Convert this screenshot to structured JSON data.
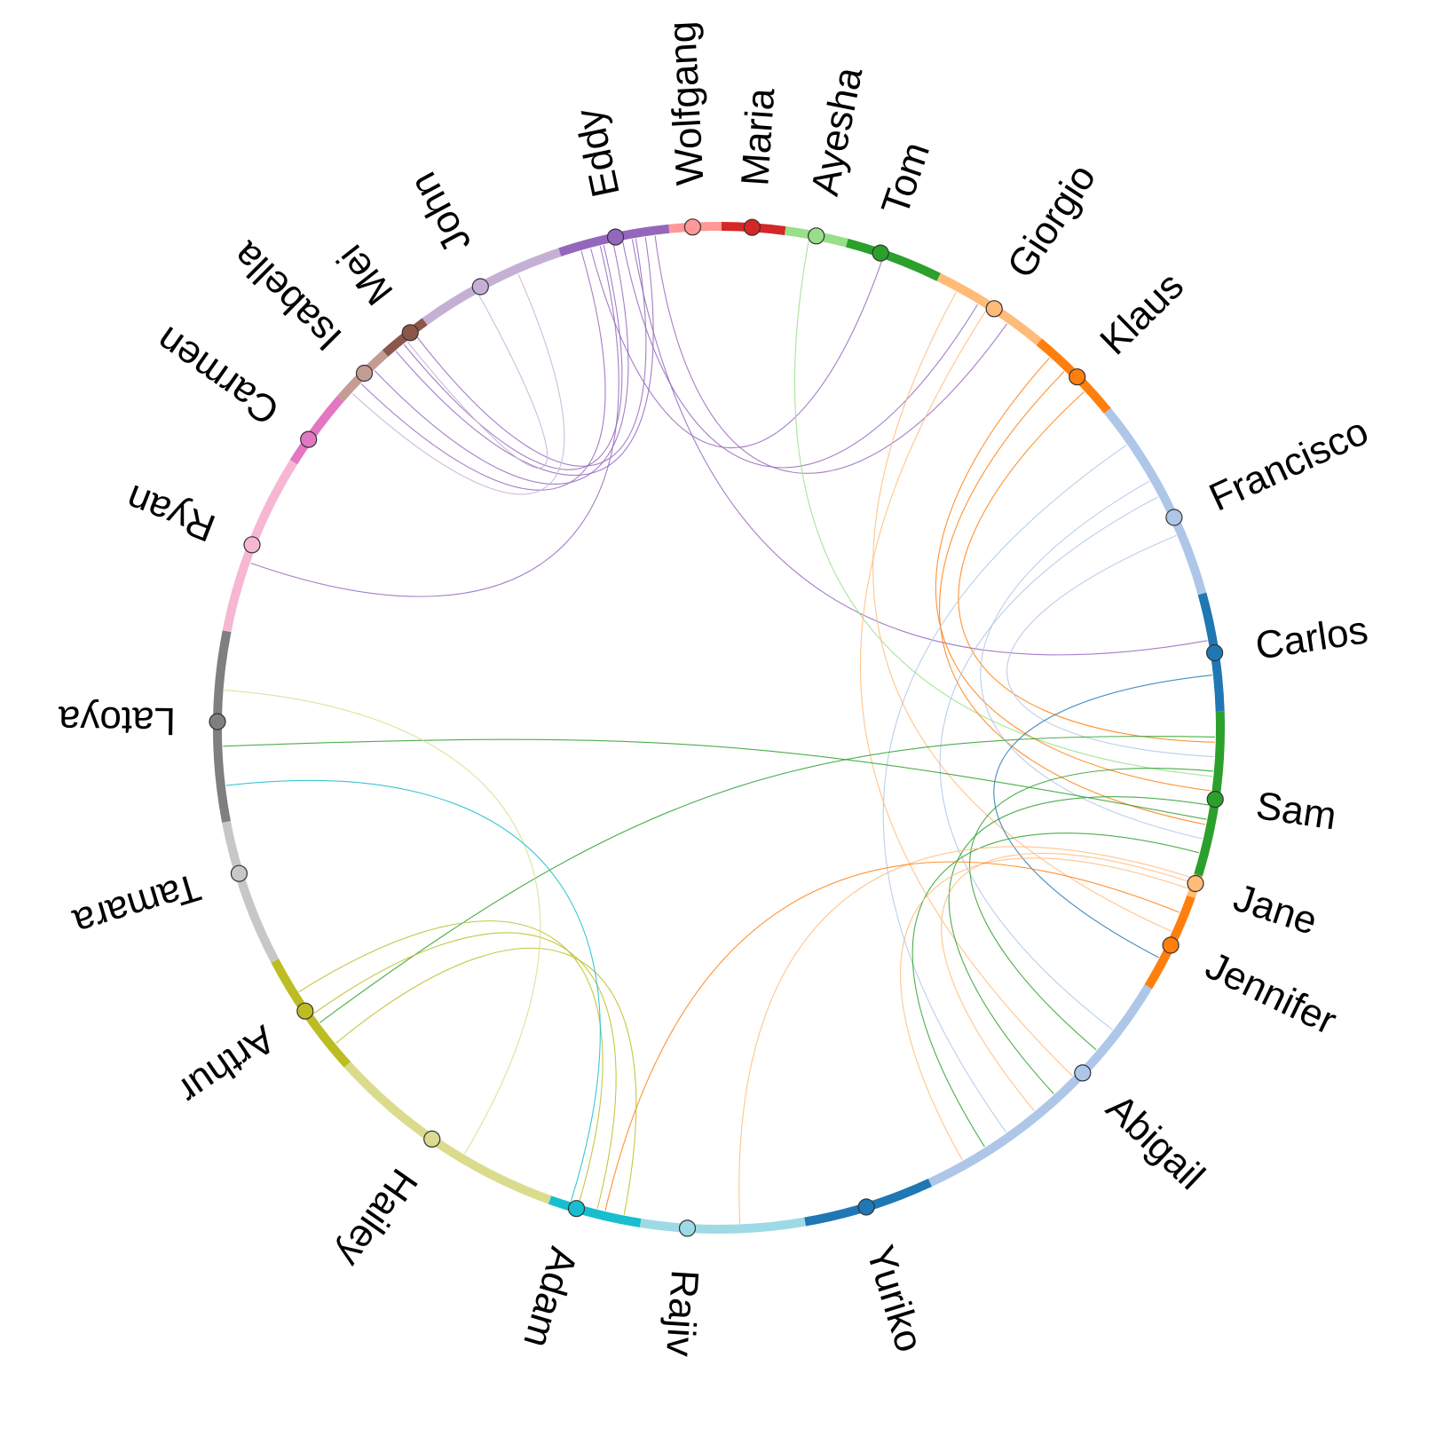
{
  "nodes": [
    {
      "id": "Eddy",
      "label": "Eddy",
      "color": "#9467bd"
    },
    {
      "id": "Wolfgang",
      "label": "Wolfgang",
      "color": "#ff9896"
    },
    {
      "id": "Maria",
      "label": "Maria",
      "color": "#d62728"
    },
    {
      "id": "Ayesha",
      "label": "Ayesha",
      "color": "#98df8a"
    },
    {
      "id": "Tom",
      "label": "Tom",
      "color": "#2ca02c"
    },
    {
      "id": "Giorgio",
      "label": "Giorgio",
      "color": "#ffbb78"
    },
    {
      "id": "Klaus",
      "label": "Klaus",
      "color": "#ff7f0e"
    },
    {
      "id": "Francisco",
      "label": "Francisco",
      "color": "#aec7e8"
    },
    {
      "id": "Carlos",
      "label": "Carlos",
      "color": "#1f77b4"
    },
    {
      "id": "Sam",
      "label": "Sam",
      "color": "#2ca02c"
    },
    {
      "id": "Jane",
      "label": "Jane",
      "color": "#ffbb78"
    },
    {
      "id": "Jennifer",
      "label": "Jennifer",
      "color": "#ff7f0e"
    },
    {
      "id": "Abigail",
      "label": "Abigail",
      "color": "#aec7e8"
    },
    {
      "id": "Yuriko",
      "label": "Yuriko",
      "color": "#1f77b4"
    },
    {
      "id": "Rajiv",
      "label": "Rajiv",
      "color": "#9edae5"
    },
    {
      "id": "Adam",
      "label": "Adam",
      "color": "#17becf"
    },
    {
      "id": "Hailey",
      "label": "Hailey",
      "color": "#dbdb8d"
    },
    {
      "id": "Arthur",
      "label": "Arthur",
      "color": "#bcbd22"
    },
    {
      "id": "Tamara",
      "label": "Tamara",
      "color": "#c7c7c7"
    },
    {
      "id": "Latoya",
      "label": "Latoya",
      "color": "#7f7f7f"
    },
    {
      "id": "Ryan",
      "label": "Ryan",
      "color": "#f7b6d2"
    },
    {
      "id": "Carmen",
      "label": "Carmen",
      "color": "#e377c2"
    },
    {
      "id": "Isabella",
      "label": "Isabella",
      "color": "#c49c94"
    },
    {
      "id": "Mei",
      "label": "Mei",
      "color": "#8c564b"
    },
    {
      "id": "John",
      "label": "John",
      "color": "#c5b0d5"
    }
  ],
  "links": [
    [
      "Eddy",
      "Mei"
    ],
    [
      "Eddy",
      "Mei"
    ],
    [
      "Eddy",
      "Isabella"
    ],
    [
      "Eddy",
      "Isabella"
    ],
    [
      "Eddy",
      "Mei"
    ],
    [
      "Eddy",
      "Tom"
    ],
    [
      "Eddy",
      "Giorgio"
    ],
    [
      "Eddy",
      "Giorgio"
    ],
    [
      "Eddy",
      "Ryan"
    ],
    [
      "John",
      "Mei"
    ],
    [
      "John",
      "Isabella"
    ],
    [
      "Eddy",
      "Carlos"
    ],
    [
      "Ayesha",
      "Sam"
    ],
    [
      "Giorgio",
      "Jennifer"
    ],
    [
      "Giorgio",
      "Abigail"
    ],
    [
      "Klaus",
      "Sam"
    ],
    [
      "Klaus",
      "Sam"
    ],
    [
      "Klaus",
      "Sam"
    ],
    [
      "Francisco",
      "Sam"
    ],
    [
      "Francisco",
      "Sam"
    ],
    [
      "Francisco",
      "Abigail"
    ],
    [
      "Francisco",
      "Abigail"
    ],
    [
      "Carlos",
      "Jennifer"
    ],
    [
      "Sam",
      "Abigail"
    ],
    [
      "Sam",
      "Abigail"
    ],
    [
      "Sam",
      "Abigail"
    ],
    [
      "Sam",
      "Latoya"
    ],
    [
      "Sam",
      "Arthur"
    ],
    [
      "Jane",
      "Abigail"
    ],
    [
      "Jane",
      "Abigail"
    ],
    [
      "Jane",
      "Rajiv"
    ],
    [
      "Jennifer",
      "Adam"
    ],
    [
      "Arthur",
      "Adam"
    ],
    [
      "Arthur",
      "Adam"
    ],
    [
      "Arthur",
      "Adam"
    ],
    [
      "Hailey",
      "Latoya"
    ],
    [
      "Adam",
      "Latoya"
    ]
  ]
}
